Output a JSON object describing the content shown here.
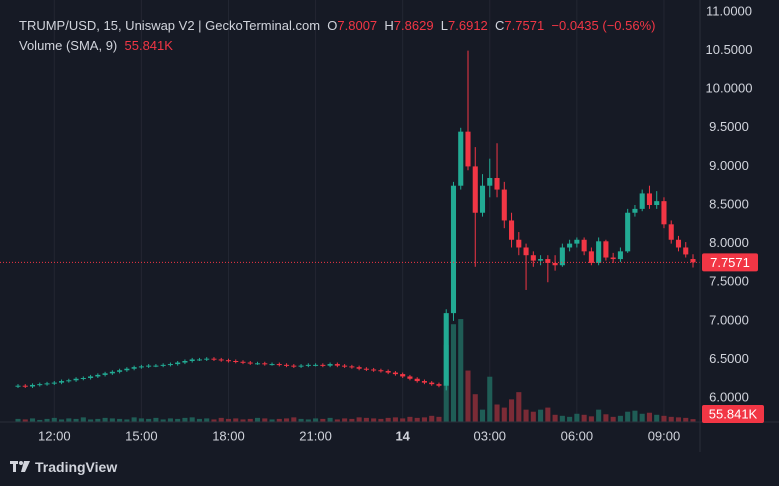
{
  "chart_data": {
    "type": "candlestick",
    "title": "TRUMP/USD, 15, Uniswap V2 | GeckoTerminal.com",
    "ohlc_labels": [
      "O",
      "H",
      "L",
      "C"
    ],
    "change": "−0.0435 (−0.56%)",
    "volume_title": "Volume (SMA, 9)",
    "volume_last_label": "55.841K",
    "brand": "TradingView",
    "up_color": "#22ab94",
    "down_color": "#f23645",
    "volume_up_color": "#1f5d56",
    "volume_down_color": "#7b2b36",
    "grid": true,
    "categories": [
      null,
      null,
      null,
      null,
      null,
      "12:00",
      null,
      null,
      null,
      null,
      null,
      null,
      null,
      null,
      null,
      null,
      null,
      "15:00",
      null,
      null,
      null,
      null,
      null,
      null,
      null,
      null,
      null,
      null,
      null,
      "18:00",
      null,
      null,
      null,
      null,
      null,
      null,
      null,
      null,
      null,
      null,
      null,
      "21:00",
      null,
      null,
      null,
      null,
      null,
      null,
      null,
      null,
      null,
      null,
      null,
      "14",
      null,
      null,
      null,
      null,
      null,
      null,
      null,
      null,
      null,
      null,
      null,
      "03:00",
      null,
      null,
      null,
      null,
      null,
      null,
      null,
      null,
      null,
      null,
      null,
      "06:00",
      null,
      null,
      null,
      null,
      null,
      null,
      null,
      null,
      null,
      null,
      null,
      "09:00",
      null,
      null,
      null,
      null
    ],
    "open": [
      6.15,
      6.16,
      6.15,
      6.17,
      6.18,
      6.19,
      6.2,
      6.22,
      6.23,
      6.25,
      6.26,
      6.28,
      6.3,
      6.32,
      6.34,
      6.36,
      6.38,
      6.4,
      6.41,
      6.42,
      6.42,
      6.43,
      6.44,
      6.46,
      6.48,
      6.5,
      6.5,
      6.51,
      6.5,
      6.49,
      6.48,
      6.47,
      6.46,
      6.45,
      6.45,
      6.44,
      6.44,
      6.43,
      6.42,
      6.41,
      6.42,
      6.43,
      6.43,
      6.42,
      6.44,
      6.42,
      6.41,
      6.4,
      6.38,
      6.37,
      6.36,
      6.35,
      6.33,
      6.31,
      6.28,
      6.25,
      6.22,
      6.2,
      6.18,
      6.16,
      7.1,
      8.75,
      9.45,
      9.0,
      8.4,
      8.75,
      8.85,
      8.7,
      8.3,
      8.05,
      7.95,
      7.85,
      7.78,
      7.8,
      7.75,
      7.72,
      7.95,
      8.0,
      8.05,
      7.9,
      7.75,
      8.03,
      7.82,
      7.8,
      7.9,
      8.4,
      8.45,
      8.65,
      8.5,
      8.55,
      8.25,
      8.05,
      7.95,
      7.8007
    ],
    "high": [
      6.18,
      6.18,
      6.19,
      6.2,
      6.21,
      6.22,
      6.24,
      6.25,
      6.27,
      6.28,
      6.3,
      6.32,
      6.34,
      6.36,
      6.38,
      6.4,
      6.42,
      6.43,
      6.44,
      6.44,
      6.45,
      6.46,
      6.48,
      6.5,
      6.52,
      6.52,
      6.53,
      6.53,
      6.52,
      6.51,
      6.5,
      6.49,
      6.48,
      6.47,
      6.47,
      6.46,
      6.46,
      6.45,
      6.44,
      6.44,
      6.45,
      6.45,
      6.45,
      6.46,
      6.46,
      6.44,
      6.43,
      6.42,
      6.4,
      6.39,
      6.38,
      6.37,
      6.35,
      6.33,
      6.3,
      6.27,
      6.24,
      6.22,
      6.2,
      7.15,
      8.8,
      9.5,
      10.5,
      9.25,
      8.9,
      9.1,
      9.3,
      8.8,
      8.4,
      8.15,
      8.0,
      7.9,
      7.85,
      7.85,
      7.85,
      8.0,
      8.05,
      8.08,
      8.08,
      7.95,
      8.08,
      8.05,
      7.88,
      7.95,
      8.45,
      8.5,
      8.7,
      8.75,
      8.68,
      8.6,
      8.3,
      8.1,
      8.02,
      7.8629
    ],
    "low": [
      6.13,
      6.13,
      6.13,
      6.15,
      6.16,
      6.17,
      6.18,
      6.2,
      6.21,
      6.23,
      6.24,
      6.26,
      6.28,
      6.3,
      6.32,
      6.34,
      6.36,
      6.38,
      6.39,
      6.4,
      6.4,
      6.41,
      6.42,
      6.44,
      6.46,
      6.48,
      6.48,
      6.48,
      6.47,
      6.46,
      6.45,
      6.44,
      6.43,
      6.43,
      6.42,
      6.42,
      6.41,
      6.4,
      6.39,
      6.39,
      6.4,
      6.41,
      6.4,
      6.4,
      6.4,
      6.39,
      6.38,
      6.36,
      6.35,
      6.34,
      6.33,
      6.31,
      6.29,
      6.26,
      6.23,
      6.2,
      6.18,
      6.16,
      6.14,
      6.1,
      7.0,
      8.7,
      8.95,
      7.7,
      8.35,
      8.6,
      8.6,
      8.2,
      7.95,
      7.85,
      7.4,
      7.7,
      7.72,
      7.5,
      7.65,
      7.7,
      7.9,
      7.95,
      7.85,
      7.72,
      7.72,
      7.78,
      7.75,
      7.76,
      7.88,
      8.35,
      8.42,
      8.45,
      8.45,
      8.2,
      8.0,
      7.9,
      7.82,
      7.6912
    ],
    "close": [
      6.16,
      6.15,
      6.17,
      6.18,
      6.19,
      6.2,
      6.22,
      6.23,
      6.25,
      6.26,
      6.28,
      6.3,
      6.32,
      6.34,
      6.36,
      6.38,
      6.4,
      6.41,
      6.42,
      6.42,
      6.43,
      6.44,
      6.46,
      6.48,
      6.5,
      6.5,
      6.51,
      6.5,
      6.49,
      6.48,
      6.47,
      6.46,
      6.45,
      6.45,
      6.44,
      6.44,
      6.43,
      6.42,
      6.41,
      6.42,
      6.43,
      6.43,
      6.42,
      6.44,
      6.42,
      6.41,
      6.4,
      6.38,
      6.37,
      6.36,
      6.35,
      6.33,
      6.31,
      6.28,
      6.25,
      6.22,
      6.2,
      6.18,
      6.16,
      7.1,
      8.75,
      9.45,
      9.0,
      8.4,
      8.75,
      8.85,
      8.7,
      8.3,
      8.05,
      7.95,
      7.85,
      7.78,
      7.8,
      7.75,
      7.72,
      7.95,
      8.0,
      8.05,
      7.9,
      7.75,
      8.03,
      7.82,
      7.8,
      7.9,
      8.4,
      8.45,
      8.65,
      8.5,
      8.55,
      8.25,
      8.05,
      7.95,
      7.86,
      7.7571
    ],
    "volume": [
      60000,
      50000,
      70000,
      40000,
      60000,
      80000,
      50000,
      70000,
      60000,
      90000,
      50000,
      60000,
      80000,
      70000,
      60000,
      50000,
      90000,
      70000,
      60000,
      80000,
      50000,
      70000,
      60000,
      80000,
      90000,
      60000,
      70000,
      50000,
      80000,
      60000,
      70000,
      50000,
      60000,
      80000,
      70000,
      50000,
      60000,
      70000,
      90000,
      60000,
      50000,
      70000,
      60000,
      80000,
      50000,
      70000,
      60000,
      90000,
      80000,
      70000,
      60000,
      80000,
      90000,
      70000,
      100000,
      80000,
      90000,
      120000,
      100000,
      1500000,
      1900000,
      2000000,
      1000000,
      540000,
      240000,
      880000,
      340000,
      280000,
      440000,
      580000,
      240000,
      200000,
      240000,
      280000,
      140000,
      120000,
      100000,
      160000,
      140000,
      110000,
      240000,
      150000,
      100000,
      120000,
      200000,
      220000,
      160000,
      180000,
      140000,
      120000,
      100000,
      90000,
      80000,
      55841
    ],
    "ylim": [
      5.69,
      11.155
    ],
    "volume_ylim": [
      0,
      8200000
    ],
    "yticks": [
      {
        "value": 6,
        "label": "6.0000"
      },
      {
        "value": 6.5,
        "label": "6.5000"
      },
      {
        "value": 7,
        "label": "7.0000"
      },
      {
        "value": 7.5,
        "label": "7.5000"
      },
      {
        "value": 8,
        "label": "8.0000"
      },
      {
        "value": 8.5,
        "label": "8.5000"
      },
      {
        "value": 9,
        "label": "9.0000"
      },
      {
        "value": 9.5,
        "label": "9.5000"
      },
      {
        "value": 10,
        "label": "10.0000"
      },
      {
        "value": 10.5,
        "label": "10.5000"
      },
      {
        "value": 11,
        "label": "11.0000"
      }
    ]
  }
}
